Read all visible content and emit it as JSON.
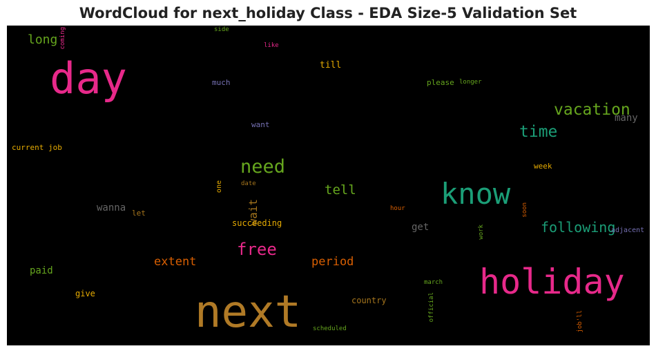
{
  "title": "WordCloud for next_holiday Class - EDA Size-5 Validation Set",
  "chart_data": {
    "type": "wordcloud",
    "background": "#000000",
    "words": [
      {
        "text": "next",
        "color": "#b07a26",
        "orientation": "horizontal"
      },
      {
        "text": "holiday",
        "color": "#e7298a",
        "orientation": "horizontal"
      },
      {
        "text": "day",
        "color": "#e7298a",
        "orientation": "horizontal"
      },
      {
        "text": "know",
        "color": "#1b9e77",
        "orientation": "horizontal"
      },
      {
        "text": "need",
        "color": "#66a61e",
        "orientation": "horizontal"
      },
      {
        "text": "vacation",
        "color": "#66a61e",
        "orientation": "horizontal"
      },
      {
        "text": "time",
        "color": "#1b9e77",
        "orientation": "horizontal"
      },
      {
        "text": "free",
        "color": "#e7298a",
        "orientation": "horizontal"
      },
      {
        "text": "following",
        "color": "#1b9e77",
        "orientation": "horizontal"
      },
      {
        "text": "extent",
        "color": "#d95f02",
        "orientation": "horizontal"
      },
      {
        "text": "period",
        "color": "#d95f02",
        "orientation": "horizontal"
      },
      {
        "text": "tell",
        "color": "#66a61e",
        "orientation": "horizontal"
      },
      {
        "text": "long",
        "color": "#66a61e",
        "orientation": "horizontal"
      },
      {
        "text": "wait",
        "color": "#a6761d",
        "orientation": "vertical"
      },
      {
        "text": "many",
        "color": "#666666",
        "orientation": "horizontal"
      },
      {
        "text": "get",
        "color": "#666666",
        "orientation": "horizontal"
      },
      {
        "text": "wanna",
        "color": "#666666",
        "orientation": "horizontal"
      },
      {
        "text": "paid",
        "color": "#66a61e",
        "orientation": "horizontal"
      },
      {
        "text": "till",
        "color": "#e6ab02",
        "orientation": "horizontal"
      },
      {
        "text": "succeeding",
        "color": "#e6ab02",
        "orientation": "horizontal"
      },
      {
        "text": "country",
        "color": "#a6761d",
        "orientation": "horizontal"
      },
      {
        "text": "give",
        "color": "#e6ab02",
        "orientation": "horizontal"
      },
      {
        "text": "please",
        "color": "#66a61e",
        "orientation": "horizontal"
      },
      {
        "text": "much",
        "color": "#7570b3",
        "orientation": "horizontal"
      },
      {
        "text": "want",
        "color": "#7570b3",
        "orientation": "horizontal"
      },
      {
        "text": "week",
        "color": "#e6ab02",
        "orientation": "horizontal"
      },
      {
        "text": "current job",
        "color": "#e6ab02",
        "orientation": "horizontal"
      },
      {
        "text": "adjacent",
        "color": "#7570b3",
        "orientation": "horizontal"
      },
      {
        "text": "let",
        "color": "#a6761d",
        "orientation": "horizontal"
      },
      {
        "text": "one",
        "color": "#e6ab02",
        "orientation": "vertical"
      },
      {
        "text": "date",
        "color": "#a6761d",
        "orientation": "horizontal"
      },
      {
        "text": "hour",
        "color": "#d95f02",
        "orientation": "horizontal"
      },
      {
        "text": "soon",
        "color": "#d95f02",
        "orientation": "vertical"
      },
      {
        "text": "work",
        "color": "#66a61e",
        "orientation": "vertical"
      },
      {
        "text": "march",
        "color": "#66a61e",
        "orientation": "horizontal"
      },
      {
        "text": "official",
        "color": "#66a61e",
        "orientation": "vertical"
      },
      {
        "text": "scheduled",
        "color": "#66a61e",
        "orientation": "horizontal"
      },
      {
        "text": "job'll",
        "color": "#d95f02",
        "orientation": "vertical"
      },
      {
        "text": "longer",
        "color": "#66a61e",
        "orientation": "horizontal"
      },
      {
        "text": "side",
        "color": "#66a61e",
        "orientation": "horizontal"
      },
      {
        "text": "like",
        "color": "#e7298a",
        "orientation": "horizontal"
      },
      {
        "text": "coming",
        "color": "#e7298a",
        "orientation": "vertical"
      }
    ]
  }
}
